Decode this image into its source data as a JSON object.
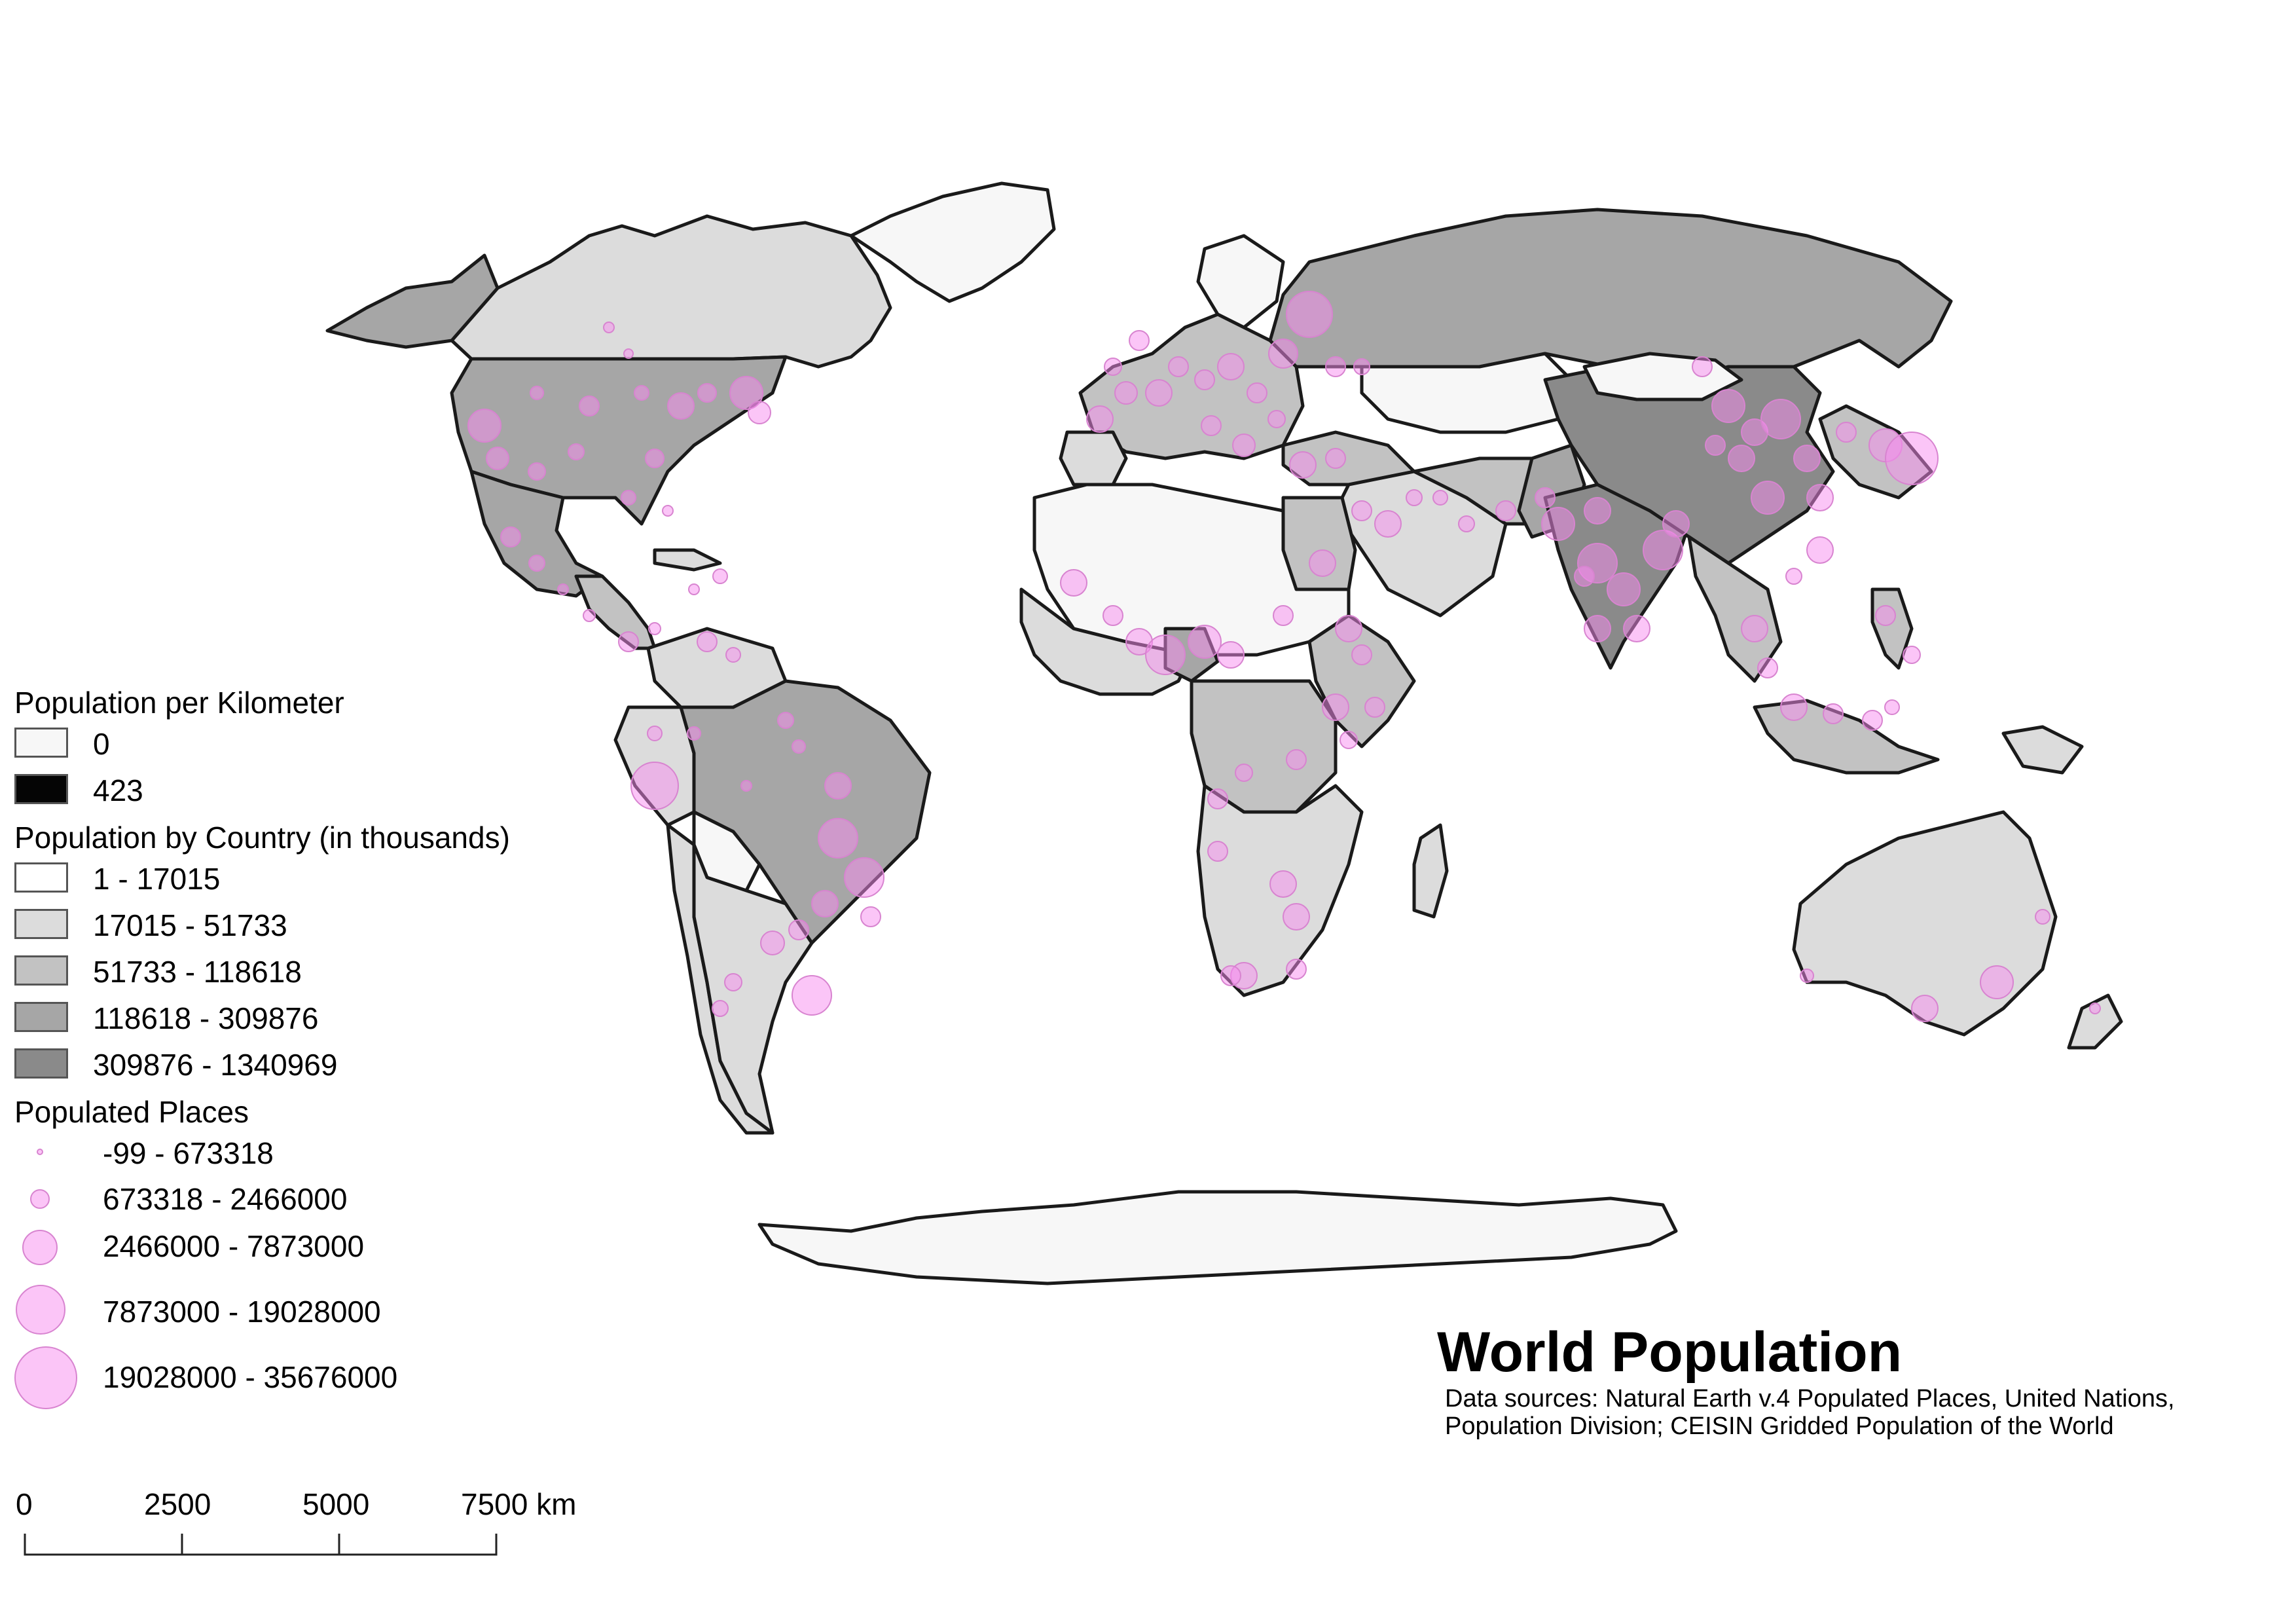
{
  "map": {
    "title": "World Population",
    "source": "Data sources: Natural Earth v.4 Populated Places, United Nations, Population Division; CEISIN Gridded Population of the World",
    "colors": {
      "ocean": "#ffffff",
      "outline": "#1a1a1a",
      "place_fill": "#f88cf0",
      "place_stroke": "#d884d0",
      "class_1": "#f7f7f7",
      "class_2": "#dcdcdc",
      "class_3": "#c2c2c2",
      "class_4": "#a6a6a6",
      "class_5": "#8a8a8a"
    }
  },
  "legend": {
    "density": {
      "title": "Population per Kilometer",
      "items": [
        {
          "label": "0",
          "color": "#f7f7f7"
        },
        {
          "label": "423",
          "color": "#050505"
        }
      ]
    },
    "country": {
      "title": "Population by Country (in thousands)",
      "items": [
        {
          "label": "1 - 17015",
          "color": "#ffffff"
        },
        {
          "label": "17015 - 51733",
          "color": "#dcdcdc"
        },
        {
          "label": "51733 - 118618",
          "color": "#c2c2c2"
        },
        {
          "label": "118618 - 309876",
          "color": "#a6a6a6"
        },
        {
          "label": "309876 - 1340969",
          "color": "#8a8a8a"
        }
      ]
    },
    "places": {
      "title": "Populated Places",
      "items": [
        {
          "label": "-99 - 673318"
        },
        {
          "label": "673318 - 2466000"
        },
        {
          "label": "2466000 - 7873000"
        },
        {
          "label": "7873000 - 19028000"
        },
        {
          "label": "19028000 - 35676000"
        }
      ]
    }
  },
  "scale_bar": {
    "labels": [
      "0",
      "2500",
      "5000",
      "7500 km"
    ]
  }
}
